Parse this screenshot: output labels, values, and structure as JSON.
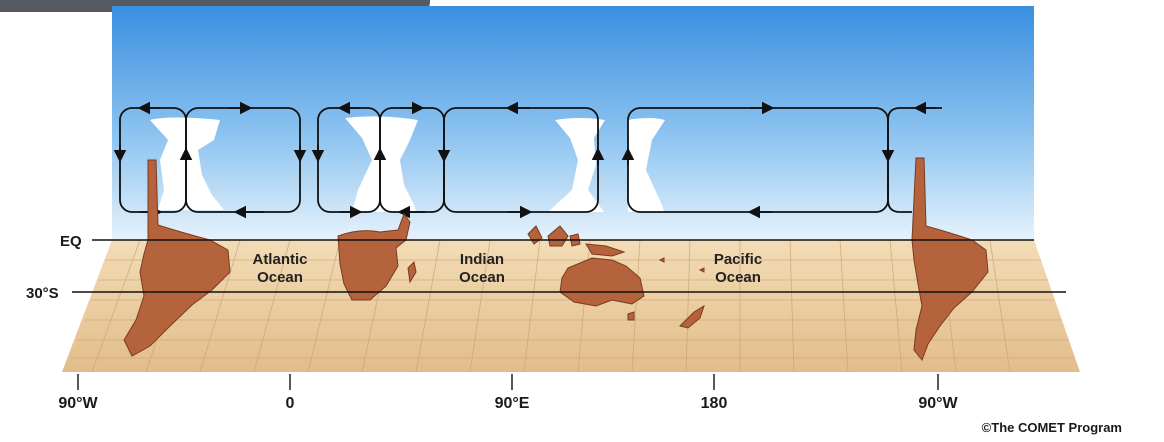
{
  "labels": {
    "equator": "EQ",
    "lat30s": "30°S",
    "oceans": [
      "Atlantic",
      "Ocean",
      "Indian",
      "Ocean",
      "Pacific",
      "Ocean"
    ],
    "longitudes": [
      "90°W",
      "0",
      "90°E",
      "180",
      "90°W"
    ],
    "credit": "©The COMET Program"
  },
  "colors": {
    "sky_top": "#3a8fe0",
    "sky_bottom": "#d8ecfa",
    "land": "#b5633d",
    "map_base": "#eccfa3",
    "cloud": "#ffffff",
    "circulation": "#111111"
  },
  "icons": [
    "arrow-left-icon",
    "arrow-right-icon",
    "arrow-up-icon",
    "arrow-down-icon"
  ]
}
